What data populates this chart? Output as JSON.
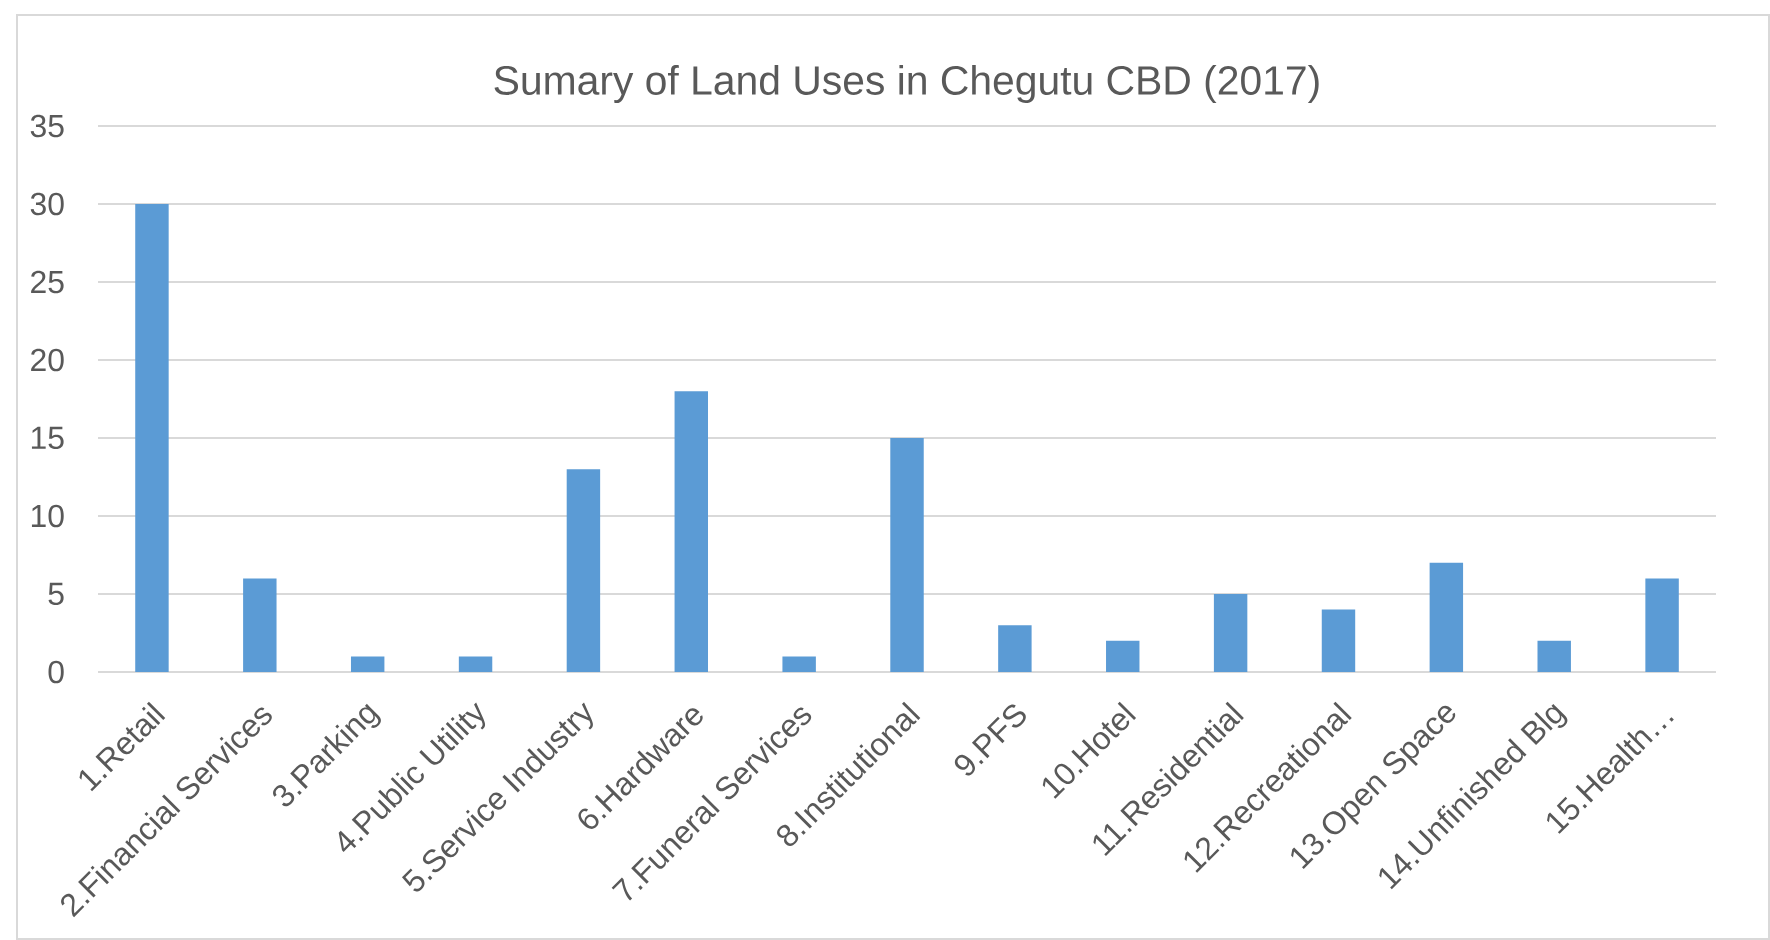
{
  "chart_data": {
    "type": "bar",
    "title": "Sumary of Land Uses in Chegutu CBD (2017)",
    "categories": [
      "1.Retail",
      "2.Financial Services",
      "3.Parking",
      "4.Public Utility",
      "5.Service Industry",
      "6.Hardware",
      "7.Funeral Services",
      "8.Institutional",
      "9.PFS",
      "10.Hotel",
      "11.Residential",
      "12.Recreational",
      "13.Open Space",
      "14.Unfinished Blg",
      "15.Health…"
    ],
    "values": [
      30,
      6,
      1,
      1,
      13,
      18,
      1,
      15,
      3,
      2,
      5,
      4,
      7,
      2,
      6
    ],
    "color": "#5b9bd5",
    "ylim": [
      0,
      35
    ],
    "yticks": [
      0,
      5,
      10,
      15,
      20,
      25,
      30,
      35
    ],
    "grid": "y"
  }
}
